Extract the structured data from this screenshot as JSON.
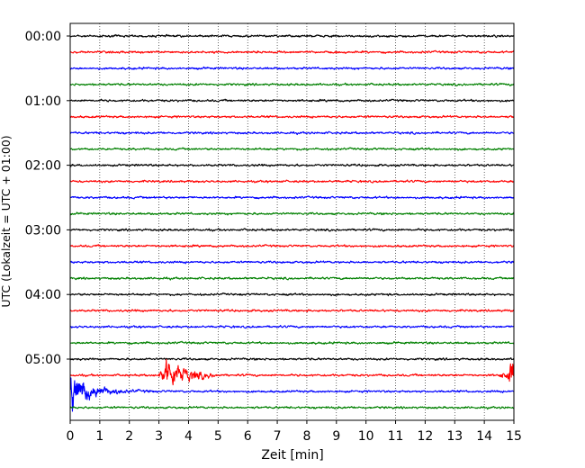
{
  "chart_data": {
    "type": "line",
    "title": "",
    "xlabel": "Zeit  [min]",
    "ylabel": "UTC (Lokalzeit = UTC + 01:00)",
    "xlim": [
      0,
      15
    ],
    "x_ticks": [
      "0",
      "1",
      "2",
      "3",
      "4",
      "5",
      "6",
      "7",
      "8",
      "9",
      "10",
      "11",
      "12",
      "13",
      "14",
      "15"
    ],
    "y_ticks": [
      {
        "row": 0,
        "label": "00:00"
      },
      {
        "row": 4,
        "label": "01:00"
      },
      {
        "row": 8,
        "label": "02:00"
      },
      {
        "row": 12,
        "label": "03:00"
      },
      {
        "row": 16,
        "label": "04:00"
      },
      {
        "row": 20,
        "label": "05:00"
      }
    ],
    "grid": "vertical dotted at each minute",
    "trace_minutes": 15,
    "trace_colors": [
      "#000000",
      "#ff0000",
      "#0000ff",
      "#008000"
    ],
    "traces": [
      {
        "start": "00:00",
        "amplitude": "low"
      },
      {
        "start": "00:15",
        "amplitude": "low"
      },
      {
        "start": "00:30",
        "amplitude": "low"
      },
      {
        "start": "00:45",
        "amplitude": "low"
      },
      {
        "start": "01:00",
        "amplitude": "low"
      },
      {
        "start": "01:15",
        "amplitude": "low"
      },
      {
        "start": "01:30",
        "amplitude": "low"
      },
      {
        "start": "01:45",
        "amplitude": "low"
      },
      {
        "start": "02:00",
        "amplitude": "low"
      },
      {
        "start": "02:15",
        "amplitude": "low"
      },
      {
        "start": "02:30",
        "amplitude": "low"
      },
      {
        "start": "02:45",
        "amplitude": "low"
      },
      {
        "start": "03:00",
        "amplitude": "low"
      },
      {
        "start": "03:15",
        "amplitude": "low"
      },
      {
        "start": "03:30",
        "amplitude": "low"
      },
      {
        "start": "03:45",
        "amplitude": "low"
      },
      {
        "start": "04:00",
        "amplitude": "low"
      },
      {
        "start": "04:15",
        "amplitude": "low"
      },
      {
        "start": "04:30",
        "amplitude": "low"
      },
      {
        "start": "04:45",
        "amplitude": "low"
      },
      {
        "start": "05:00",
        "amplitude": "low"
      },
      {
        "start": "05:15",
        "amplitude": "event",
        "events": [
          {
            "t_min": 3.0,
            "t_max": 5.0,
            "peak_at": 3.2
          },
          {
            "t_min": 14.3,
            "t_max": 15.0,
            "peak_at": 15.0
          }
        ]
      },
      {
        "start": "05:30",
        "amplitude": "event",
        "events": [
          {
            "t_min": 0.0,
            "t_max": 3.0,
            "peak_at": 0.05
          }
        ]
      },
      {
        "start": "05:45",
        "amplitude": "low"
      }
    ]
  }
}
